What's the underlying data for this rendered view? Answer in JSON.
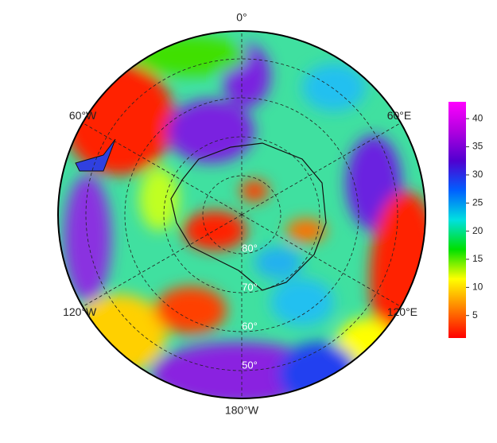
{
  "map": {
    "longitude_labels": [
      {
        "value": 0,
        "label": "0°"
      },
      {
        "value": 60,
        "label": "60°E"
      },
      {
        "value": 120,
        "label": "120°E"
      },
      {
        "value": 180,
        "label": "180°W"
      },
      {
        "value": -120,
        "label": "120°W"
      },
      {
        "value": -60,
        "label": "60°W"
      }
    ],
    "latitude_labels": [
      {
        "value": 80,
        "label": "80°"
      },
      {
        "value": 70,
        "label": "70°"
      },
      {
        "value": 60,
        "label": "60°"
      },
      {
        "value": 50,
        "label": "50°"
      }
    ],
    "colorbar": {
      "lim": [
        1,
        43
      ],
      "ticks": [
        5,
        10,
        15,
        20,
        25,
        30,
        35,
        40
      ],
      "colors": [
        "#ff0000",
        "#ff8000",
        "#ffff00",
        "#00e000",
        "#00e0e0",
        "#0060ff",
        "#5000d0",
        "#b000e0",
        "#ff00ff"
      ]
    }
  }
}
